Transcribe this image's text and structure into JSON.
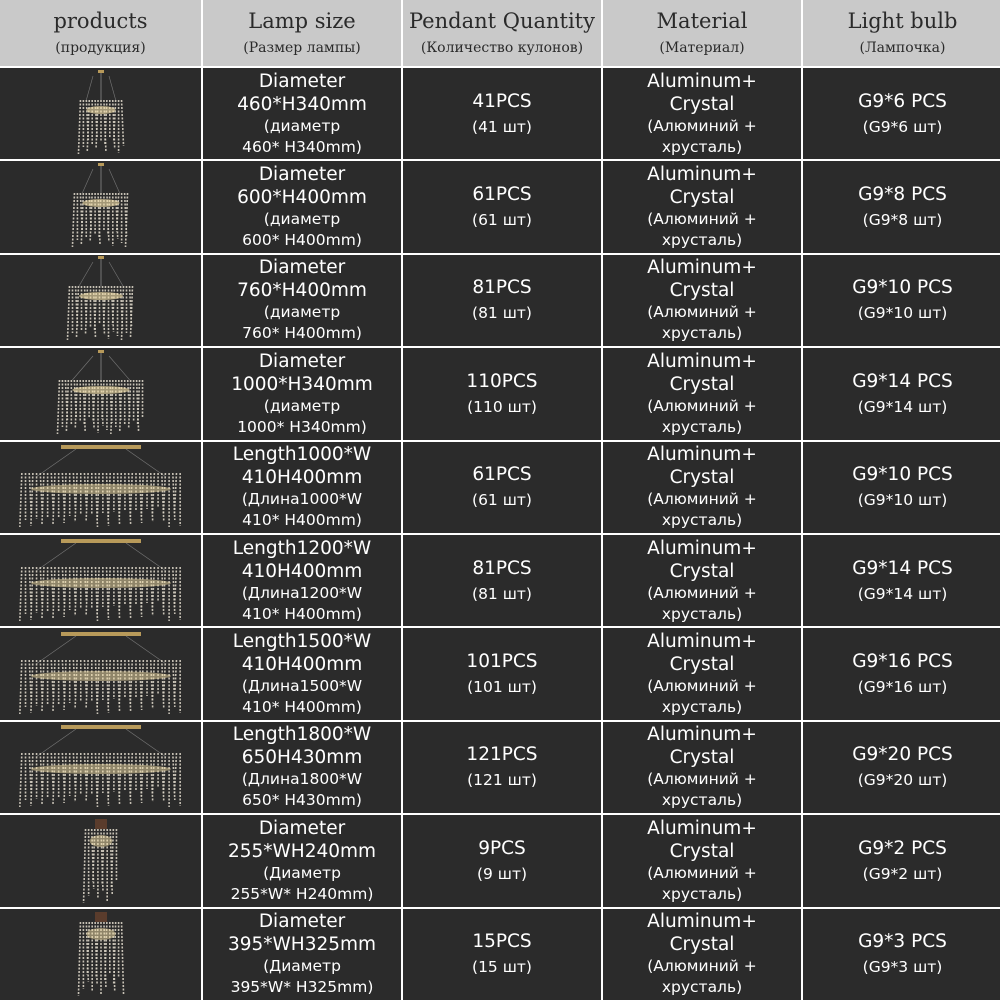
{
  "header": [
    {
      "en": "products",
      "ru": "(продукция)"
    },
    {
      "en": "Lamp size",
      "ru": "(Размер лампы)"
    },
    {
      "en": "Pendant Quantity",
      "ru": "(Количество кулонов)"
    },
    {
      "en": "Material",
      "ru": "(Материал)"
    },
    {
      "en": "Light bulb",
      "ru": "(Лампочка)"
    }
  ],
  "rows": [
    {
      "lamp_kind": "round-small",
      "size": [
        "Diameter",
        "460*H340mm",
        "(диаметр",
        "460* H340mm)"
      ],
      "qty": "41PCS",
      "qty_ru": "(41 шт)",
      "material": [
        "Aluminum+",
        "Crystal",
        "(Алюминий +",
        "хрусталь)"
      ],
      "bulb": "G9*6 PCS",
      "bulb_ru": "(G9*6 шт)"
    },
    {
      "lamp_kind": "round-medium",
      "size": [
        "Diameter",
        "600*H400mm",
        "(диаметр",
        "600* H400mm)"
      ],
      "qty": "61PCS",
      "qty_ru": "(61 шт)",
      "material": [
        "Aluminum+",
        "Crystal",
        "(Алюминий +",
        "хрусталь)"
      ],
      "bulb": "G9*8 PCS",
      "bulb_ru": "(G9*8 шт)"
    },
    {
      "lamp_kind": "round-large",
      "size": [
        "Diameter",
        "760*H400mm",
        "(диаметр",
        "760* H400mm)"
      ],
      "qty": "81PCS",
      "qty_ru": "(81 шт)",
      "material": [
        "Aluminum+",
        "Crystal",
        "(Алюминий +",
        "хрусталь)"
      ],
      "bulb": "G9*10 PCS",
      "bulb_ru": "(G9*10 шт)"
    },
    {
      "lamp_kind": "round-xlarge",
      "size": [
        "Diameter",
        "1000*H340mm",
        "(диаметр",
        "1000* H340mm)"
      ],
      "qty": "110PCS",
      "qty_ru": "(110 шт)",
      "material": [
        "Aluminum+",
        "Crystal",
        "(Алюминий +",
        "хрусталь)"
      ],
      "bulb": "G9*14 PCS",
      "bulb_ru": "(G9*14 шт)"
    },
    {
      "lamp_kind": "linear",
      "size": [
        "Length1000*W",
        "410H400mm",
        "(Длина1000*W",
        "410* H400mm)"
      ],
      "qty": "61PCS",
      "qty_ru": "(61 шт)",
      "material": [
        "Aluminum+",
        "Crystal",
        "(Алюминий +",
        "хрусталь)"
      ],
      "bulb": "G9*10 PCS",
      "bulb_ru": "(G9*10 шт)"
    },
    {
      "lamp_kind": "linear",
      "size": [
        "Length1200*W",
        "410H400mm",
        "(Длина1200*W",
        "410* H400mm)"
      ],
      "qty": "81PCS",
      "qty_ru": "(81 шт)",
      "material": [
        "Aluminum+",
        "Crystal",
        "(Алюминий +",
        "хрусталь)"
      ],
      "bulb": "G9*14 PCS",
      "bulb_ru": "(G9*14 шт)"
    },
    {
      "lamp_kind": "linear",
      "size": [
        "Length1500*W",
        "410H400mm",
        "(Длина1500*W",
        "410* H400mm)"
      ],
      "qty": "101PCS",
      "qty_ru": "(101 шт)",
      "material": [
        "Aluminum+",
        "Crystal",
        "(Алюминий +",
        "хрусталь)"
      ],
      "bulb": "G9*16 PCS",
      "bulb_ru": "(G9*16 шт)"
    },
    {
      "lamp_kind": "linear",
      "size": [
        "Length1800*W",
        "650H430mm",
        "(Длина1800*W",
        "650* H430mm)"
      ],
      "qty": "121PCS",
      "qty_ru": "(121 шт)",
      "material": [
        "Aluminum+",
        "Crystal",
        "(Алюминий +",
        "хрусталь)"
      ],
      "bulb": "G9*20 PCS",
      "bulb_ru": "(G9*20 шт)"
    },
    {
      "lamp_kind": "wall-small",
      "size": [
        "Diameter",
        "255*WH240mm",
        "(Диаметр",
        "255*W* H240mm)"
      ],
      "qty": "9PCS",
      "qty_ru": "(9 шт)",
      "material": [
        "Aluminum+",
        "Crystal",
        "(Алюминий +",
        "хрусталь)"
      ],
      "bulb": "G9*2 PCS",
      "bulb_ru": "(G9*2 шт)"
    },
    {
      "lamp_kind": "wall-large",
      "size": [
        "Diameter",
        "395*WH325mm",
        "(Диаметр",
        "395*W* H325mm)"
      ],
      "qty": "15PCS",
      "qty_ru": "(15 шт)",
      "material": [
        "Aluminum+",
        "Crystal",
        "(Алюминий +",
        "хрусталь)"
      ],
      "bulb": "G9*3 PCS",
      "bulb_ru": "(G9*3 шт)"
    }
  ],
  "colors": {
    "header_bg": "#c9c9c9",
    "cell_bg": "#2b2b2b",
    "text": "#ffffff",
    "gold": "#b89a5a",
    "crystal": "#d8d2c4"
  }
}
